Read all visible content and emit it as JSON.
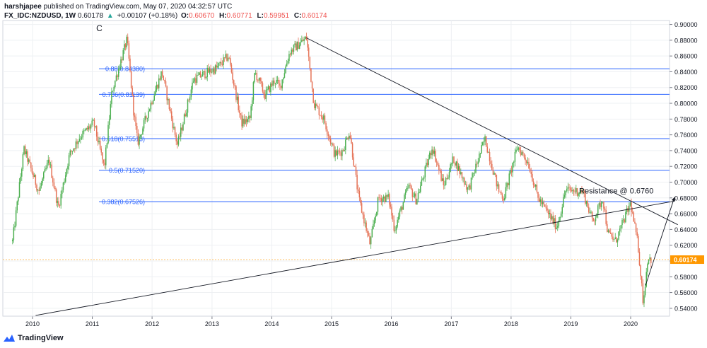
{
  "header": {
    "author": "harshjapee",
    "published_text": "published on TradingView.com, May 07, 2020 04:32:57 UTC",
    "symbol": "FX_IDC:NZDUSD, 1W",
    "last": "0.60178",
    "change_arrow": "▲",
    "change": "+0.00107 (+0.18%)",
    "o_label": "O:",
    "o_value": "0.60670",
    "h_label": "H:",
    "h_value": "0.60771",
    "l_label": "L:",
    "l_value": "0.59951",
    "c_label": "C:",
    "c_value": "0.60174"
  },
  "footer": {
    "brand": "TradingView",
    "logo_icon": "tradingview-logo-icon"
  },
  "colors": {
    "up": "#26a69a",
    "up_body": "#4caf50",
    "down": "#ef5350",
    "down_body": "#e57357",
    "fib": "#2962ff",
    "trend": "#131722",
    "price_line": "#ff9800",
    "grid": "#eef0f3",
    "axis_text": "#131722"
  },
  "chart_data": {
    "type": "candlestick",
    "title": "FX_IDC:NZDUSD, 1W",
    "x_axis": {
      "ticks": [
        "2010",
        "2011",
        "2012",
        "2013",
        "2014",
        "2015",
        "2016",
        "2017",
        "2018",
        "2019",
        "2020"
      ]
    },
    "y_axis": {
      "ylim": [
        0.53,
        0.905
      ],
      "ticks": [
        "0.90000",
        "0.88000",
        "0.86000",
        "0.84000",
        "0.82000",
        "0.80000",
        "0.78000",
        "0.76000",
        "0.74000",
        "0.72000",
        "0.70000",
        "0.68000",
        "0.66000",
        "0.64000",
        "0.62000",
        "0.60000",
        "0.58000",
        "0.56000",
        "0.54000"
      ]
    },
    "grid": true,
    "current_price": {
      "value": 0.60174,
      "label": "0.60174"
    },
    "wave_label": "C",
    "fib_levels": [
      {
        "ratio_label": "0.88(0.84380)",
        "value": 0.8438
      },
      {
        "ratio_label": "0.786(0.81139)",
        "value": 0.81139
      },
      {
        "ratio_label": "0.618(0.75513)",
        "value": 0.75513
      },
      {
        "ratio_label": "0.5(0.71520)",
        "value": 0.7152
      },
      {
        "ratio_label": "0.382(0.67526)",
        "value": 0.67526
      }
    ],
    "annotation": {
      "text": "Resistance @ 0.6760",
      "value": 0.676
    },
    "price_path": [
      {
        "t": "2009-09-01",
        "p": 0.625
      },
      {
        "t": "2009-11-10",
        "p": 0.742
      },
      {
        "t": "2010-02-08",
        "p": 0.688
      },
      {
        "t": "2010-04-12",
        "p": 0.728
      },
      {
        "t": "2010-06-07",
        "p": 0.667
      },
      {
        "t": "2010-08-15",
        "p": 0.735
      },
      {
        "t": "2010-10-15",
        "p": 0.757
      },
      {
        "t": "2011-01-10",
        "p": 0.775
      },
      {
        "t": "2011-03-15",
        "p": 0.718
      },
      {
        "t": "2011-05-01",
        "p": 0.815
      },
      {
        "t": "2011-08-01",
        "p": 0.881
      },
      {
        "t": "2011-09-10",
        "p": 0.79
      },
      {
        "t": "2011-10-05",
        "p": 0.75
      },
      {
        "t": "2012-01-10",
        "p": 0.81
      },
      {
        "t": "2012-03-01",
        "p": 0.84
      },
      {
        "t": "2012-05-15",
        "p": 0.765
      },
      {
        "t": "2012-06-04",
        "p": 0.747
      },
      {
        "t": "2012-09-10",
        "p": 0.83
      },
      {
        "t": "2012-12-10",
        "p": 0.84
      },
      {
        "t": "2013-02-01",
        "p": 0.845
      },
      {
        "t": "2013-04-11",
        "p": 0.86
      },
      {
        "t": "2013-06-30",
        "p": 0.775
      },
      {
        "t": "2013-08-20",
        "p": 0.78
      },
      {
        "t": "2013-09-20",
        "p": 0.84
      },
      {
        "t": "2013-11-20",
        "p": 0.81
      },
      {
        "t": "2014-01-20",
        "p": 0.83
      },
      {
        "t": "2014-02-20",
        "p": 0.82
      },
      {
        "t": "2014-04-20",
        "p": 0.865
      },
      {
        "t": "2014-07-31",
        "p": 0.883
      },
      {
        "t": "2014-09-15",
        "p": 0.8
      },
      {
        "t": "2014-11-15",
        "p": 0.78
      },
      {
        "t": "2015-01-20",
        "p": 0.735
      },
      {
        "t": "2015-03-10",
        "p": 0.74
      },
      {
        "t": "2015-04-20",
        "p": 0.765
      },
      {
        "t": "2015-06-15",
        "p": 0.68
      },
      {
        "t": "2015-08-24",
        "p": 0.621
      },
      {
        "t": "2015-10-15",
        "p": 0.68
      },
      {
        "t": "2015-12-15",
        "p": 0.68
      },
      {
        "t": "2016-01-20",
        "p": 0.64
      },
      {
        "t": "2016-04-15",
        "p": 0.695
      },
      {
        "t": "2016-06-01",
        "p": 0.677
      },
      {
        "t": "2016-09-07",
        "p": 0.745
      },
      {
        "t": "2016-11-15",
        "p": 0.695
      },
      {
        "t": "2017-01-15",
        "p": 0.73
      },
      {
        "t": "2017-04-15",
        "p": 0.69
      },
      {
        "t": "2017-07-25",
        "p": 0.755
      },
      {
        "t": "2017-10-15",
        "p": 0.69
      },
      {
        "t": "2017-11-17",
        "p": 0.68
      },
      {
        "t": "2018-02-10",
        "p": 0.745
      },
      {
        "t": "2018-04-15",
        "p": 0.725
      },
      {
        "t": "2018-06-15",
        "p": 0.68
      },
      {
        "t": "2018-10-08",
        "p": 0.643
      },
      {
        "t": "2018-12-01",
        "p": 0.69
      },
      {
        "t": "2019-03-15",
        "p": 0.688
      },
      {
        "t": "2019-05-15",
        "p": 0.65
      },
      {
        "t": "2019-07-15",
        "p": 0.68
      },
      {
        "t": "2019-08-15",
        "p": 0.635
      },
      {
        "t": "2019-10-01",
        "p": 0.625
      },
      {
        "t": "2019-12-31",
        "p": 0.673
      },
      {
        "t": "2020-02-15",
        "p": 0.62
      },
      {
        "t": "2020-03-18",
        "p": 0.547
      },
      {
        "t": "2020-04-15",
        "p": 0.605
      },
      {
        "t": "2020-05-07",
        "p": 0.6017
      }
    ]
  }
}
